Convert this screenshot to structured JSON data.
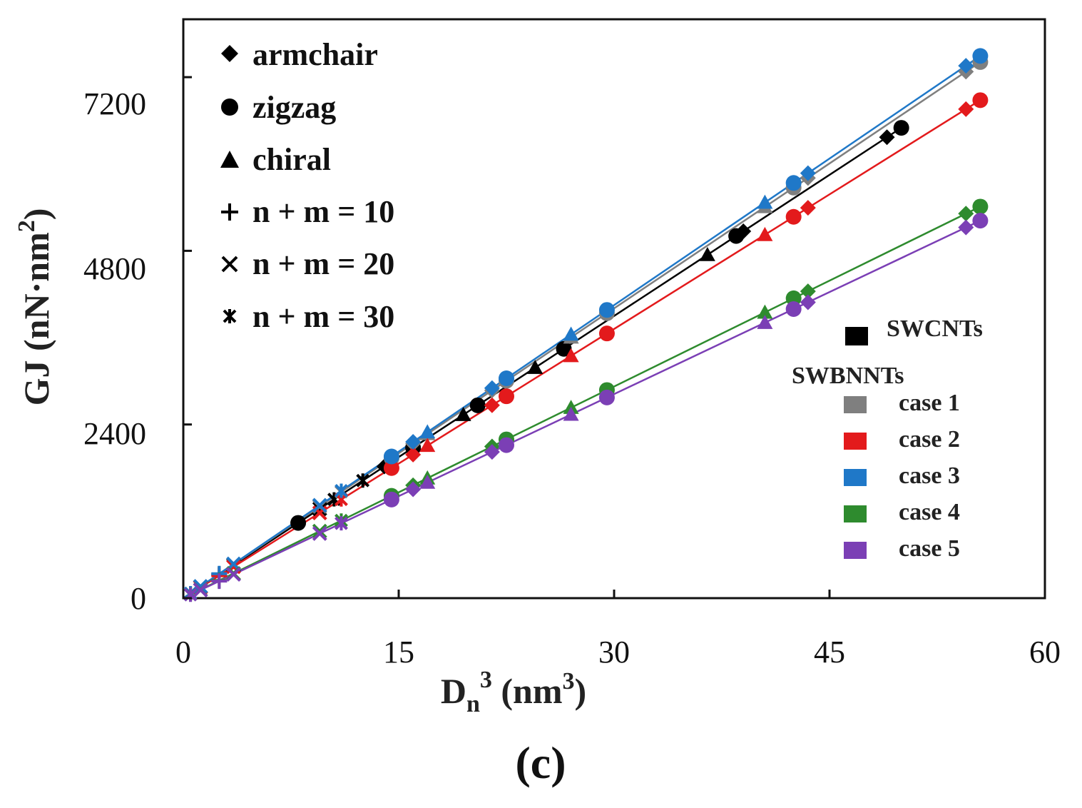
{
  "chart_data": {
    "type": "scatter",
    "title": "",
    "xlabel": "Dn³ (nm³)",
    "ylabel": "GJ (nN·nm²)",
    "xlabel_parts": {
      "main": "D",
      "sub": "n",
      "sup": "3",
      "rest": " (nm",
      "rest_sup": "3",
      "rest_end": ")"
    },
    "ylabel_parts": {
      "main": "GJ (nN·nm",
      "sup": "2",
      "end": ")"
    },
    "xlim": [
      0,
      60
    ],
    "ylim": [
      0,
      8000
    ],
    "xticks": [
      0,
      15,
      30,
      45,
      60
    ],
    "xtick_labels": [
      "0",
      "15",
      "30",
      "45",
      "60"
    ],
    "yticks": [
      0,
      2400,
      4800,
      7200
    ],
    "ytick_labels": [
      "0",
      "2400",
      "4800",
      "7200"
    ],
    "grid": false,
    "panel_label": "(c)",
    "marker_legend": [
      {
        "marker": "diamond",
        "label": "armchair"
      },
      {
        "marker": "circle",
        "label": "zigzag"
      },
      {
        "marker": "triangle",
        "label": "chiral"
      },
      {
        "marker": "plus",
        "label": "n + m = 10"
      },
      {
        "marker": "cross",
        "label": "n + m = 20"
      },
      {
        "marker": "star",
        "label": "n + m = 30"
      }
    ],
    "color_legend": {
      "swcnt_label": "SWCNTs",
      "swbnnt_label": "SWBNNTs",
      "entries": [
        {
          "label": "SWCNTs",
          "color": "#000000"
        },
        {
          "label": "case 1",
          "color": "#7f7f7f"
        },
        {
          "label": "case 2",
          "color": "#e31a1c"
        },
        {
          "label": "case 3",
          "color": "#1f78c8"
        },
        {
          "label": "case 4",
          "color": "#2e8b2e"
        },
        {
          "label": "case 5",
          "color": "#7b3fb5"
        }
      ]
    },
    "series": [
      {
        "name": "SWCNTs",
        "color": "#000000",
        "slope": 130,
        "points": [
          [
            0.5,
            65,
            "star"
          ],
          [
            1.2,
            156,
            "cross"
          ],
          [
            2.5,
            325,
            "plus"
          ],
          [
            3.5,
            455,
            "cross"
          ],
          [
            8,
            1040,
            "circle"
          ],
          [
            9.5,
            1235,
            "cross"
          ],
          [
            10.5,
            1365,
            "star"
          ],
          [
            12.5,
            1625,
            "star"
          ],
          [
            14,
            1820,
            "diamond"
          ],
          [
            16,
            2080,
            "circle"
          ],
          [
            19.5,
            2535,
            "triangle"
          ],
          [
            20.5,
            2665,
            "circle"
          ],
          [
            24.5,
            3185,
            "triangle"
          ],
          [
            26.5,
            3445,
            "circle"
          ],
          [
            36.5,
            4745,
            "triangle"
          ],
          [
            38.5,
            5005,
            "circle"
          ],
          [
            39,
            5070,
            "diamond"
          ],
          [
            49,
            6370,
            "diamond"
          ],
          [
            50,
            6500,
            "circle"
          ]
        ]
      },
      {
        "name": "case 1",
        "color": "#7f7f7f",
        "slope": 133.5,
        "points": [
          [
            0.5,
            67,
            "star"
          ],
          [
            1.2,
            160,
            "cross"
          ],
          [
            2.5,
            334,
            "plus"
          ],
          [
            3.5,
            467,
            "cross"
          ],
          [
            9.5,
            1268,
            "cross"
          ],
          [
            11,
            1469,
            "star"
          ],
          [
            14.5,
            1936,
            "circle"
          ],
          [
            16,
            2136,
            "diamond"
          ],
          [
            17,
            2270,
            "triangle"
          ],
          [
            21.5,
            2870,
            "diamond"
          ],
          [
            22.5,
            3004,
            "circle"
          ],
          [
            27,
            3605,
            "triangle"
          ],
          [
            29.5,
            3938,
            "circle"
          ],
          [
            40.5,
            5407,
            "triangle"
          ],
          [
            42.5,
            5674,
            "circle"
          ],
          [
            43.5,
            5807,
            "diamond"
          ],
          [
            54.5,
            7276,
            "diamond"
          ],
          [
            55.5,
            7409,
            "circle"
          ]
        ]
      },
      {
        "name": "case 2",
        "color": "#e31a1c",
        "slope": 124,
        "points": [
          [
            0.5,
            62,
            "star"
          ],
          [
            1.2,
            149,
            "cross"
          ],
          [
            2.5,
            310,
            "plus"
          ],
          [
            3.5,
            434,
            "cross"
          ],
          [
            9.5,
            1178,
            "cross"
          ],
          [
            11,
            1364,
            "star"
          ],
          [
            14.5,
            1798,
            "circle"
          ],
          [
            16,
            1984,
            "diamond"
          ],
          [
            17,
            2108,
            "triangle"
          ],
          [
            21.5,
            2666,
            "diamond"
          ],
          [
            22.5,
            2790,
            "circle"
          ],
          [
            27,
            3348,
            "triangle"
          ],
          [
            29.5,
            3658,
            "circle"
          ],
          [
            40.5,
            5022,
            "triangle"
          ],
          [
            42.5,
            5270,
            "circle"
          ],
          [
            43.5,
            5394,
            "diamond"
          ],
          [
            54.5,
            6758,
            "diamond"
          ],
          [
            55.5,
            6882,
            "circle"
          ]
        ]
      },
      {
        "name": "case 3",
        "color": "#1f78c8",
        "slope": 135,
        "points": [
          [
            0.5,
            68,
            "star"
          ],
          [
            1.2,
            162,
            "cross"
          ],
          [
            2.5,
            338,
            "plus"
          ],
          [
            3.5,
            473,
            "cross"
          ],
          [
            9.5,
            1283,
            "cross"
          ],
          [
            11,
            1485,
            "star"
          ],
          [
            14.5,
            1958,
            "circle"
          ],
          [
            16,
            2160,
            "diamond"
          ],
          [
            17,
            2295,
            "triangle"
          ],
          [
            21.5,
            2903,
            "diamond"
          ],
          [
            22.5,
            3038,
            "circle"
          ],
          [
            27,
            3645,
            "triangle"
          ],
          [
            29.5,
            3983,
            "circle"
          ],
          [
            40.5,
            5468,
            "triangle"
          ],
          [
            42.5,
            5738,
            "circle"
          ],
          [
            43.5,
            5873,
            "diamond"
          ],
          [
            54.5,
            7358,
            "diamond"
          ],
          [
            55.5,
            7493,
            "circle"
          ]
        ]
      },
      {
        "name": "case 4",
        "color": "#2e8b2e",
        "slope": 97.5,
        "points": [
          [
            0.5,
            49,
            "star"
          ],
          [
            1.2,
            117,
            "cross"
          ],
          [
            2.5,
            244,
            "plus"
          ],
          [
            3.5,
            341,
            "cross"
          ],
          [
            9.5,
            926,
            "cross"
          ],
          [
            11,
            1073,
            "star"
          ],
          [
            14.5,
            1414,
            "circle"
          ],
          [
            16,
            1560,
            "diamond"
          ],
          [
            17,
            1658,
            "triangle"
          ],
          [
            21.5,
            2096,
            "diamond"
          ],
          [
            22.5,
            2194,
            "circle"
          ],
          [
            27,
            2633,
            "triangle"
          ],
          [
            29.5,
            2876,
            "circle"
          ],
          [
            40.5,
            3949,
            "triangle"
          ],
          [
            42.5,
            4144,
            "circle"
          ],
          [
            43.5,
            4241,
            "diamond"
          ],
          [
            54.5,
            5314,
            "diamond"
          ],
          [
            55.5,
            5411,
            "circle"
          ]
        ]
      },
      {
        "name": "case 5",
        "color": "#7b3fb5",
        "slope": 94,
        "points": [
          [
            0.5,
            47,
            "star"
          ],
          [
            1.2,
            113,
            "cross"
          ],
          [
            2.5,
            235,
            "plus"
          ],
          [
            3.5,
            329,
            "cross"
          ],
          [
            9.5,
            893,
            "cross"
          ],
          [
            11,
            1034,
            "star"
          ],
          [
            14.5,
            1363,
            "circle"
          ],
          [
            16,
            1504,
            "diamond"
          ],
          [
            17,
            1598,
            "triangle"
          ],
          [
            21.5,
            2021,
            "diamond"
          ],
          [
            22.5,
            2115,
            "circle"
          ],
          [
            27,
            2538,
            "triangle"
          ],
          [
            29.5,
            2773,
            "circle"
          ],
          [
            40.5,
            3807,
            "triangle"
          ],
          [
            42.5,
            3995,
            "circle"
          ],
          [
            43.5,
            4089,
            "diamond"
          ],
          [
            54.5,
            5123,
            "diamond"
          ],
          [
            55.5,
            5217,
            "circle"
          ]
        ]
      }
    ]
  }
}
